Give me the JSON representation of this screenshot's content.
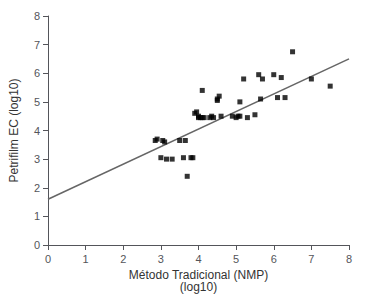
{
  "chart_data": {
    "type": "scatter",
    "xlabel": "Método Tradicional (NMP)\n(log10)",
    "ylabel": "Petrifilm EC (log10)",
    "xlim": [
      0,
      8
    ],
    "ylim": [
      0,
      8
    ],
    "xticks": [
      0,
      1,
      2,
      3,
      4,
      5,
      6,
      7,
      8
    ],
    "yticks": [
      0,
      1,
      2,
      3,
      4,
      5,
      6,
      7,
      8
    ],
    "grid": false,
    "series": [
      {
        "type": "line",
        "color": "#666666",
        "line_style": "solid",
        "x": [
          0,
          8
        ],
        "values": [
          1.6,
          6.5
        ]
      },
      {
        "type": "scatter",
        "color": "#000000",
        "marker": "square",
        "x": [
          2.85,
          2.9,
          3.0,
          3.05,
          3.1,
          3.15,
          3.3,
          3.5,
          3.6,
          3.65,
          3.7,
          3.8,
          3.85,
          3.9,
          3.95,
          4.0,
          4.0,
          4.05,
          4.1,
          4.1,
          4.15,
          4.3,
          4.35,
          4.4,
          4.5,
          4.5,
          4.55,
          4.6,
          4.9,
          5.0,
          5.05,
          5.1,
          5.1,
          5.2,
          5.3,
          5.5,
          5.6,
          5.65,
          5.7,
          6.0,
          6.1,
          6.2,
          6.3,
          6.5,
          7.0,
          7.5
        ],
        "values": [
          3.65,
          3.7,
          3.05,
          3.65,
          3.6,
          3.0,
          3.0,
          3.65,
          3.05,
          3.65,
          2.4,
          3.05,
          3.05,
          4.6,
          4.65,
          4.45,
          4.5,
          4.45,
          4.45,
          5.4,
          4.45,
          4.45,
          4.5,
          4.45,
          5.05,
          5.1,
          5.2,
          4.5,
          4.5,
          4.45,
          4.5,
          4.5,
          5.0,
          5.8,
          4.45,
          4.55,
          5.95,
          5.1,
          5.8,
          5.95,
          5.15,
          5.85,
          5.15,
          6.75,
          5.8,
          5.55
        ]
      }
    ]
  }
}
